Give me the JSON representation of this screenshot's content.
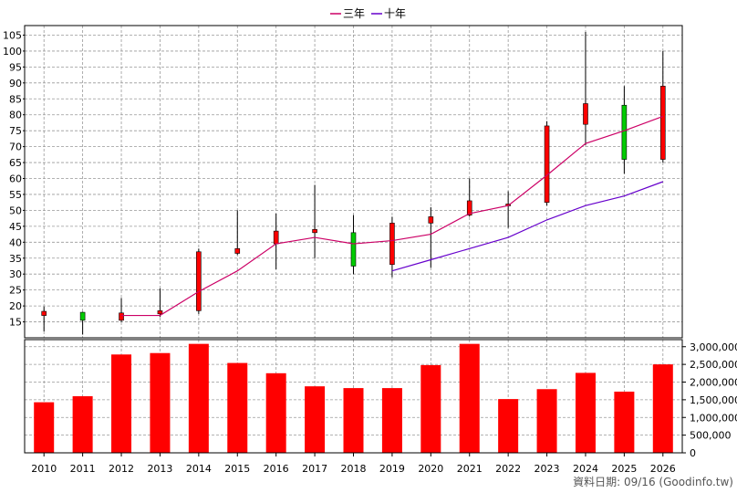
{
  "chart_data": {
    "type": "candlestick",
    "legend": {
      "placement": "top-center",
      "items": [
        {
          "label": "三年",
          "color": "#cc0066"
        },
        {
          "label": "十年",
          "color": "#6600cc"
        }
      ]
    },
    "categories": [
      "2010",
      "2011",
      "2012",
      "2013",
      "2014",
      "2015",
      "2016",
      "2017",
      "2018",
      "2019",
      "2020",
      "2021",
      "2022",
      "2023",
      "2024",
      "2025",
      "2026"
    ],
    "candles": [
      {
        "open": 17.0,
        "high": 19.8,
        "low": 12.0,
        "close": 18.3
      },
      {
        "open": 18.0,
        "high": 18.2,
        "low": 11.0,
        "close": 15.5
      },
      {
        "open": 15.5,
        "high": 22.5,
        "low": 15.0,
        "close": 17.8
      },
      {
        "open": 17.5,
        "high": 25.5,
        "low": 16.5,
        "close": 18.5
      },
      {
        "open": 18.5,
        "high": 38.0,
        "low": 17.5,
        "close": 37.0
      },
      {
        "open": 36.5,
        "high": 50.0,
        "low": 36.0,
        "close": 38.0
      },
      {
        "open": 39.5,
        "high": 49.0,
        "low": 31.5,
        "close": 43.5
      },
      {
        "open": 43.0,
        "high": 58.0,
        "low": 35.0,
        "close": 44.0
      },
      {
        "open": 43.0,
        "high": 48.5,
        "low": 30.0,
        "close": 32.5
      },
      {
        "open": 33.0,
        "high": 48.0,
        "low": 29.0,
        "close": 46.0
      },
      {
        "open": 46.0,
        "high": 51.0,
        "low": 32.0,
        "close": 48.0
      },
      {
        "open": 48.5,
        "high": 60.0,
        "low": 48.0,
        "close": 53.0
      },
      {
        "open": 52.0,
        "high": 56.0,
        "low": 44.5,
        "close": 52.0
      },
      {
        "open": 52.5,
        "high": 78.0,
        "low": 51.5,
        "close": 76.5
      },
      {
        "open": 77.0,
        "high": 106.0,
        "low": 70.5,
        "close": 83.5
      },
      {
        "open": 83.0,
        "high": 89.0,
        "low": 61.5,
        "close": 66.0
      },
      {
        "open": 66.0,
        "high": 100.0,
        "low": 65.0,
        "close": 89.0
      }
    ],
    "ma3": [
      null,
      null,
      17.0,
      17.0,
      24.5,
      31.0,
      39.5,
      41.5,
      39.5,
      40.5,
      42.5,
      49.0,
      51.5,
      61.0,
      71.0,
      75.0,
      79.5
    ],
    "ma10": [
      null,
      null,
      null,
      null,
      null,
      null,
      null,
      null,
      null,
      31.0,
      34.5,
      38.0,
      41.5,
      47.0,
      51.5,
      54.5,
      59.0
    ],
    "volume": [
      1430000,
      1600000,
      2780000,
      2820000,
      3080000,
      2540000,
      2250000,
      1880000,
      1830000,
      1830000,
      2480000,
      3080000,
      1520000,
      1800000,
      2260000,
      1730000,
      2500000
    ],
    "price_axis": {
      "ylim": [
        10,
        108
      ],
      "ticks": [
        15,
        20,
        25,
        30,
        35,
        40,
        45,
        50,
        55,
        60,
        65,
        70,
        75,
        80,
        85,
        90,
        95,
        100,
        105
      ]
    },
    "volume_axis": {
      "ylim": [
        0,
        3200000
      ],
      "ticks": [
        0,
        500000,
        1000000,
        1500000,
        2000000,
        2500000,
        3000000
      ],
      "tick_labels": [
        "0",
        "500,000",
        "1,000,000",
        "1,500,000",
        "2,000,000",
        "2,500,000",
        "3,000,000"
      ]
    },
    "grid": true,
    "colors": {
      "up": "#ff0000",
      "down": "#00cc00",
      "volume": "#ff0000",
      "grid": "#999999"
    }
  },
  "footer": {
    "source": "資料日期: 09/16 (Goodinfo.tw)"
  }
}
